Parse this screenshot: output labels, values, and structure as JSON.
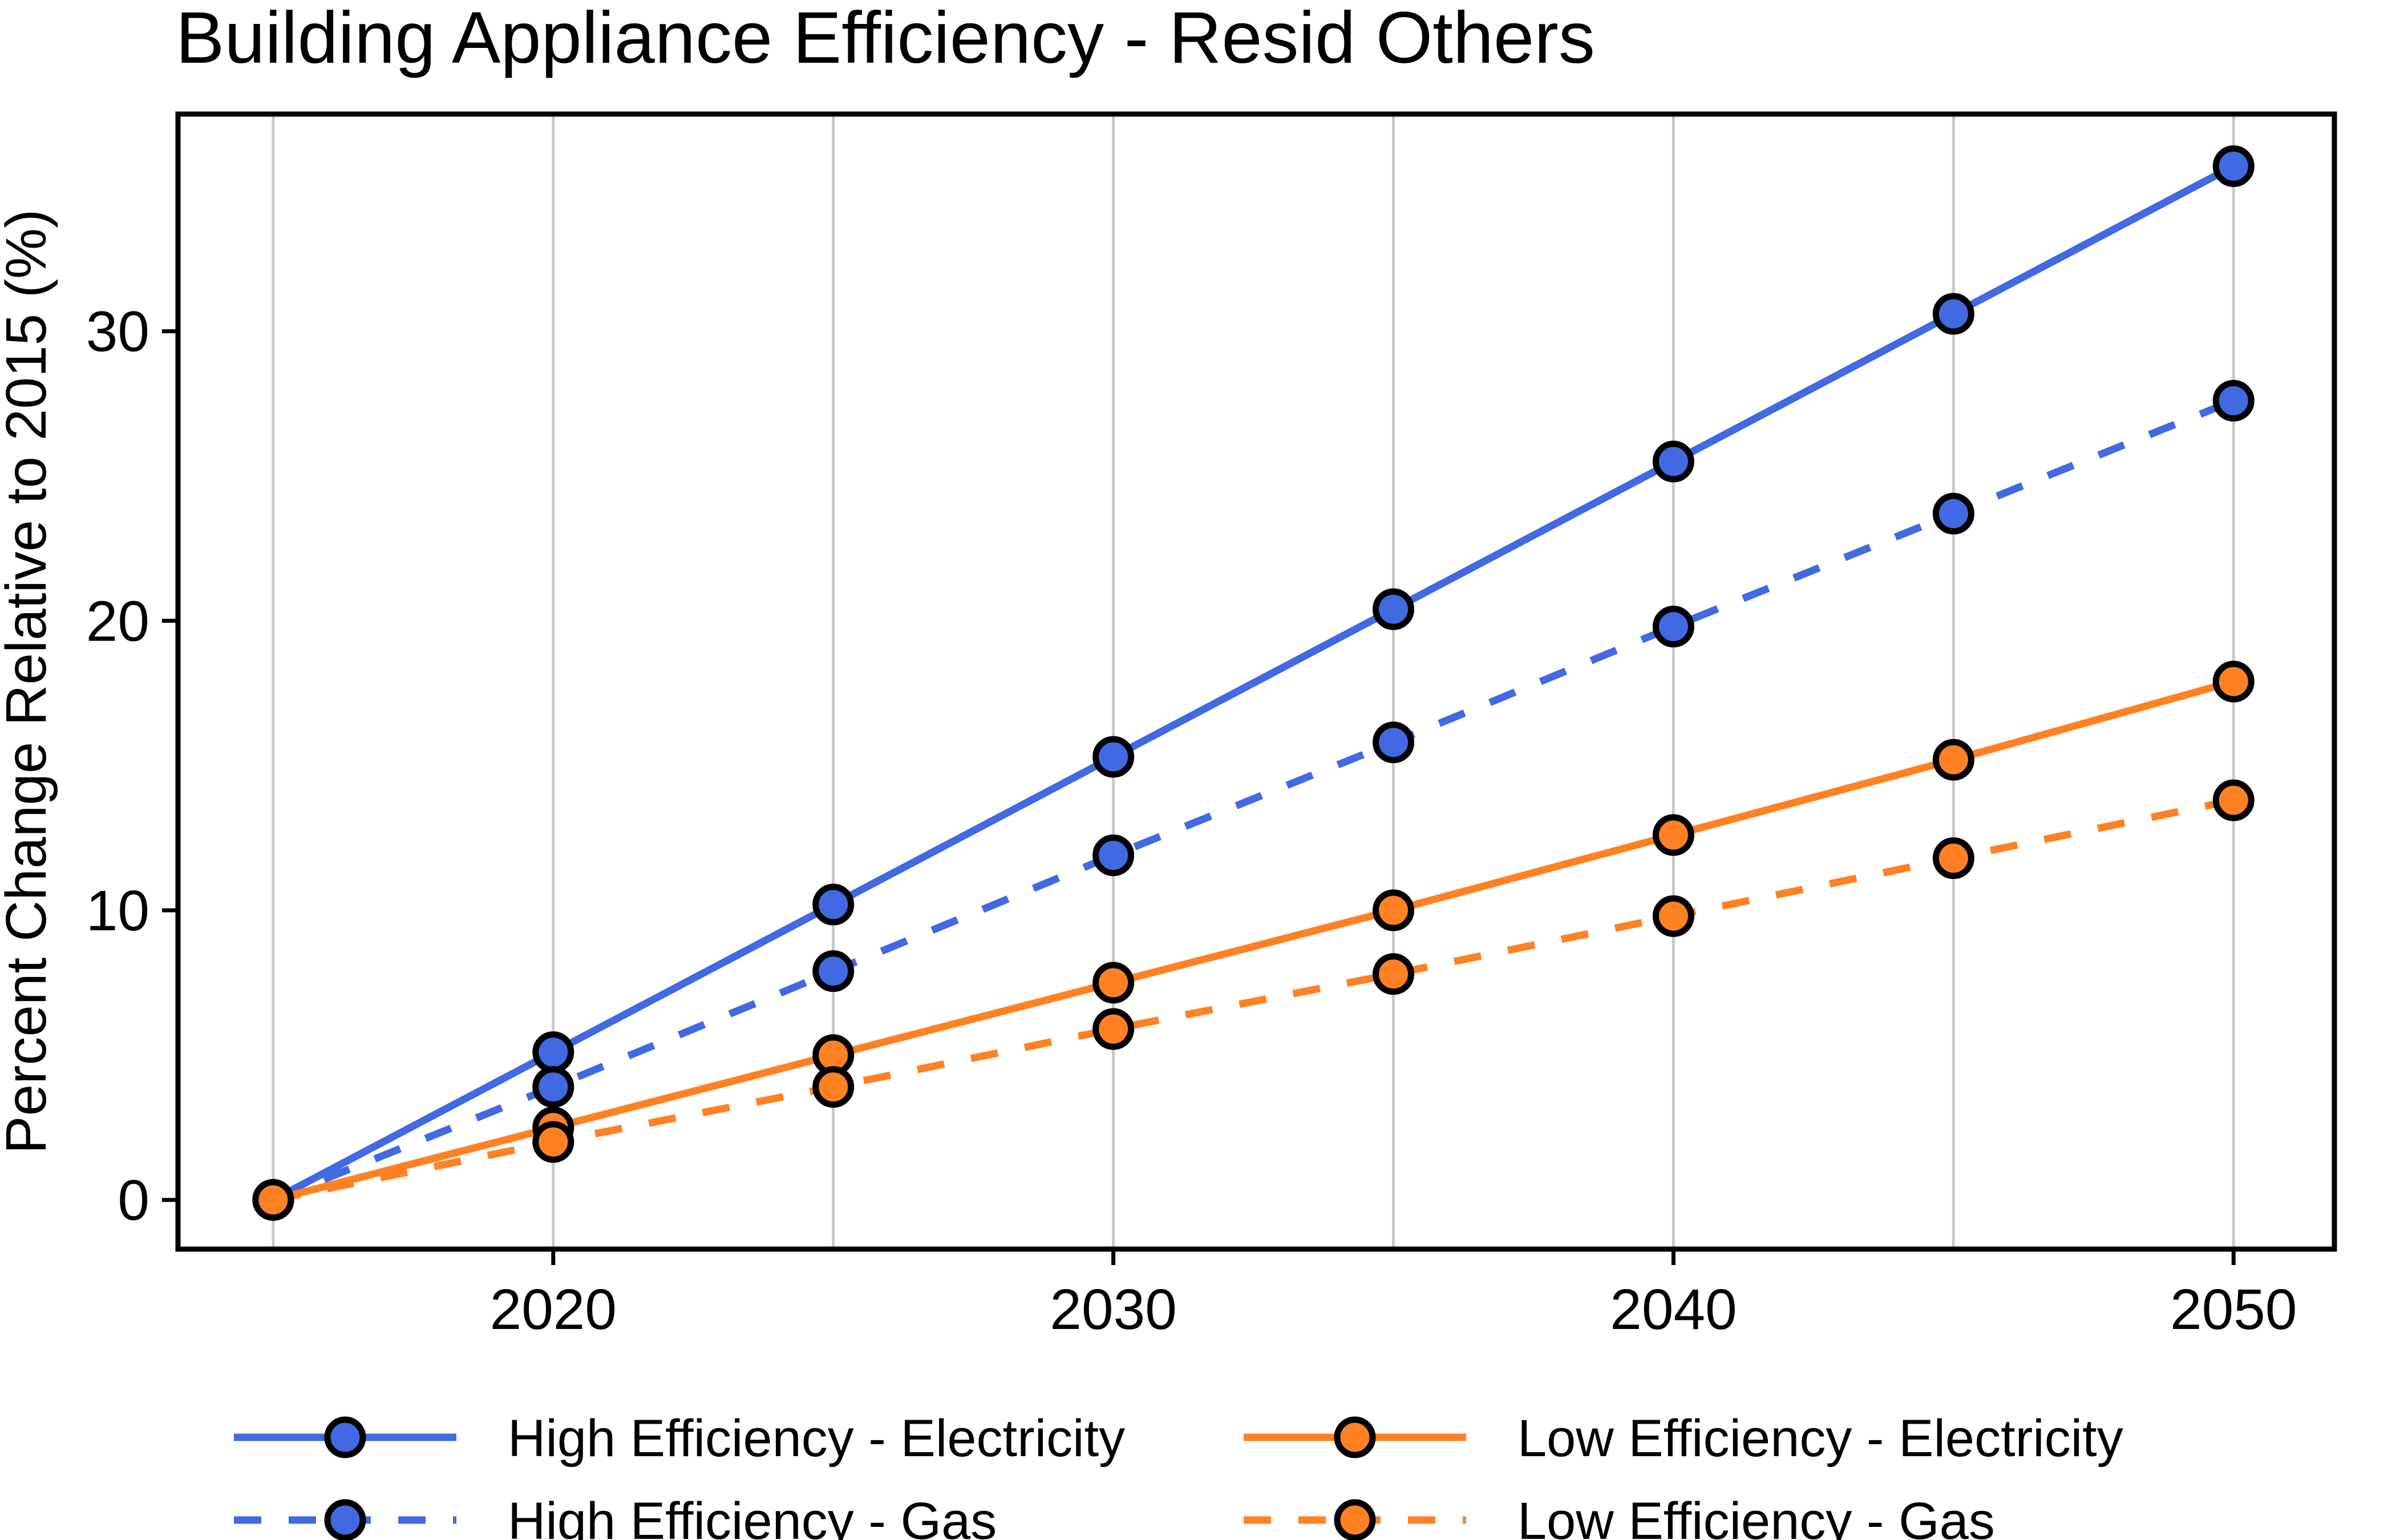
{
  "chart_data": {
    "type": "line",
    "title": "Building Appliance Efficiency - Resid Others",
    "xlabel": "",
    "ylabel": "Percent Change Relative to 2015 (%)",
    "x": [
      2015,
      2020,
      2025,
      2030,
      2035,
      2040,
      2045,
      2050
    ],
    "xlim": [
      2013.3,
      2051.8
    ],
    "ylim": [
      -1.7,
      37.5
    ],
    "x_ticks": [
      2020,
      2030,
      2040,
      2050
    ],
    "y_ticks": [
      0,
      10,
      20,
      30
    ],
    "grid": {
      "vertical": true,
      "horizontal": false
    },
    "legend_position": "bottom",
    "series": [
      {
        "name": "High Efficiency - Electricity",
        "color": "#4169E1",
        "dash": "solid",
        "values": [
          0,
          5.1,
          10.2,
          15.3,
          20.4,
          25.5,
          30.6,
          35.7
        ]
      },
      {
        "name": "High Efficiency - Gas",
        "color": "#4169E1",
        "dash": "dashed",
        "values": [
          0,
          3.9,
          7.9,
          11.9,
          15.8,
          19.8,
          23.7,
          27.6
        ]
      },
      {
        "name": "Low Efficiency - Electricity",
        "color": "#FF8124",
        "dash": "solid",
        "values": [
          0,
          2.5,
          5.0,
          7.5,
          10.0,
          12.6,
          15.2,
          17.9
        ]
      },
      {
        "name": "Low Efficiency - Gas",
        "color": "#FF8124",
        "dash": "dashed",
        "values": [
          0,
          2.0,
          3.9,
          5.9,
          7.8,
          9.8,
          11.8,
          13.8
        ]
      }
    ]
  }
}
